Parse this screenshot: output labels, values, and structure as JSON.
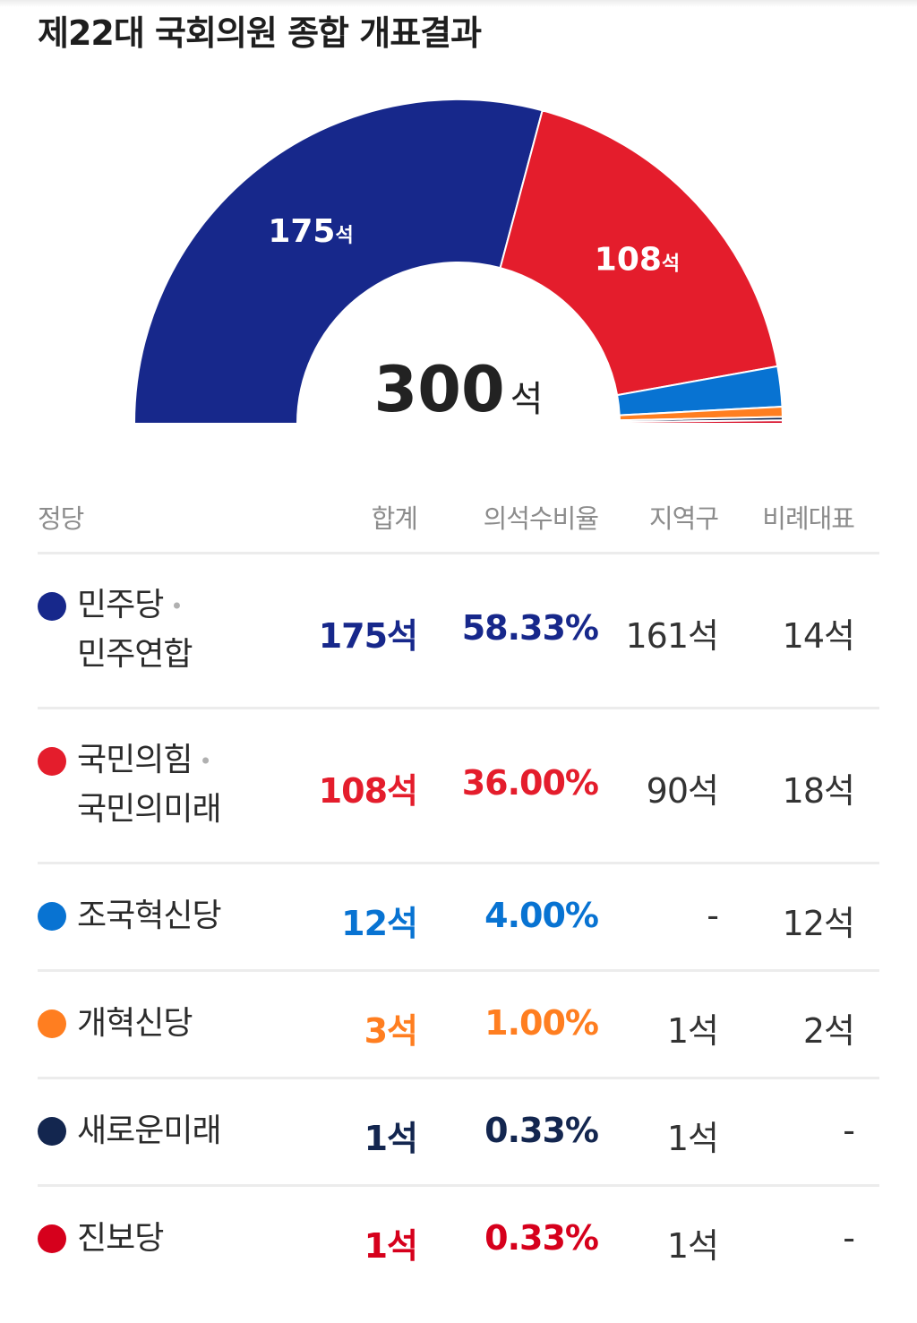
{
  "title": "제22대 국회의원 종합 개표결과",
  "chart_data": {
    "type": "pie",
    "subtype": "half-donut",
    "total_label": "300",
    "total_unit": "석",
    "unit": "석",
    "slices": [
      {
        "label": "민주당 · 민주연합",
        "value": 175,
        "color": "#17288b",
        "show_label": true
      },
      {
        "label": "국민의힘 · 국민의미래",
        "value": 108,
        "color": "#e41d2c",
        "show_label": true
      },
      {
        "label": "조국혁신당",
        "value": 12,
        "color": "#0873d2",
        "show_label": false
      },
      {
        "label": "개혁신당",
        "value": 3,
        "color": "#ff7e20",
        "show_label": false
      },
      {
        "label": "새로운미래",
        "value": 1,
        "color": "#13264f",
        "show_label": false
      },
      {
        "label": "진보당",
        "value": 1,
        "color": "#d6001c",
        "show_label": false
      }
    ]
  },
  "table": {
    "headers": {
      "party": "정당",
      "total": "합계",
      "ratio": "의석수비율",
      "district": "지역구",
      "pr": "비례대표"
    },
    "rows": [
      {
        "name_line1": "민주당",
        "sep": "•",
        "name_line2": "민주연합",
        "total": "175석",
        "ratio": "58.33%",
        "district": "161석",
        "pr": "14석",
        "color": "#17288b"
      },
      {
        "name_line1": "국민의힘",
        "sep": "•",
        "name_line2": "국민의미래",
        "total": "108석",
        "ratio": "36.00%",
        "district": "90석",
        "pr": "18석",
        "color": "#e41d2c"
      },
      {
        "name_line1": "조국혁신당",
        "total": "12석",
        "ratio": "4.00%",
        "district": "-",
        "pr": "12석",
        "color": "#0873d2"
      },
      {
        "name_line1": "개혁신당",
        "total": "3석",
        "ratio": "1.00%",
        "district": "1석",
        "pr": "2석",
        "color": "#ff7e20"
      },
      {
        "name_line1": "새로운미래",
        "total": "1석",
        "ratio": "0.33%",
        "district": "1석",
        "pr": "-",
        "color": "#13264f"
      },
      {
        "name_line1": "진보당",
        "total": "1석",
        "ratio": "0.33%",
        "district": "1석",
        "pr": "-",
        "color": "#d6001c"
      }
    ]
  }
}
